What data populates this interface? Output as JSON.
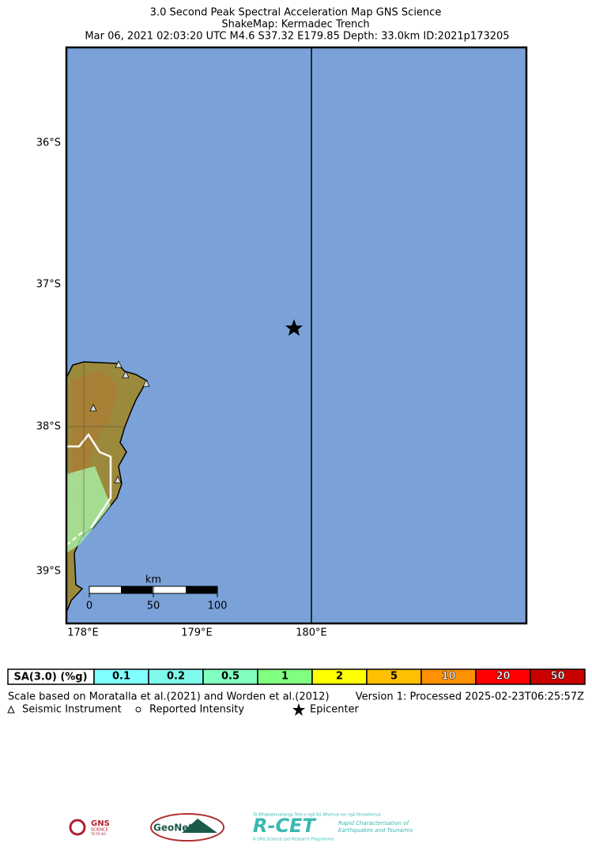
{
  "header": {
    "title": "3.0 Second Peak Spectral Acceleration Map GNS Science",
    "subtitle": "ShakeMap: Kermadec Trench",
    "event": "Mar 06, 2021 02:03:20 UTC M4.6 S37.32 E179.85 Depth: 33.0km ID:2021p173205"
  },
  "map": {
    "lat_labels": [
      "36°S",
      "37°S",
      "38°S",
      "39°S"
    ],
    "lon_labels": [
      "178°E",
      "179°E",
      "180°E"
    ],
    "scale_bar": {
      "unit": "km",
      "ticks": [
        "0",
        "50",
        "100"
      ]
    }
  },
  "legend": {
    "label": "SA(3.0) (%g)",
    "bins": [
      {
        "label": "0.1",
        "color": "#80ffff"
      },
      {
        "label": "0.2",
        "color": "#7ff9ec"
      },
      {
        "label": "0.5",
        "color": "#80ffc0"
      },
      {
        "label": "1",
        "color": "#80ff80"
      },
      {
        "label": "2",
        "color": "#ffff00"
      },
      {
        "label": "5",
        "color": "#ffc000"
      },
      {
        "label": "10",
        "color": "#ff9000"
      },
      {
        "label": "20",
        "color": "#ff0000"
      },
      {
        "label": "50",
        "color": "#c80000"
      }
    ]
  },
  "notes": {
    "scale": "Scale based on Moratalla et al.(2021) and Worden et al.(2012)",
    "version": "Version 1: Processed 2025-02-23T06:25:57Z"
  },
  "key": {
    "instrument": "Seismic Instrument",
    "intensity": "Reported Intensity",
    "epicenter": "Epicenter"
  },
  "logos": {
    "gns": "GNS",
    "gns_sub": "SCIENCE",
    "gns_maori": "TE PŪ AO",
    "geonet": "GeoNet",
    "rcet": "R-CET",
    "rcet_top": "Te Whakaahuatanga Tere o ngā Rū Whenua me ngā Parawhenua",
    "rcet_line1": "Rapid Characterisation of",
    "rcet_line2": "Earthquakes and Tsunamis",
    "rcet_bottom": "A GNS Science Led Research Programme"
  }
}
